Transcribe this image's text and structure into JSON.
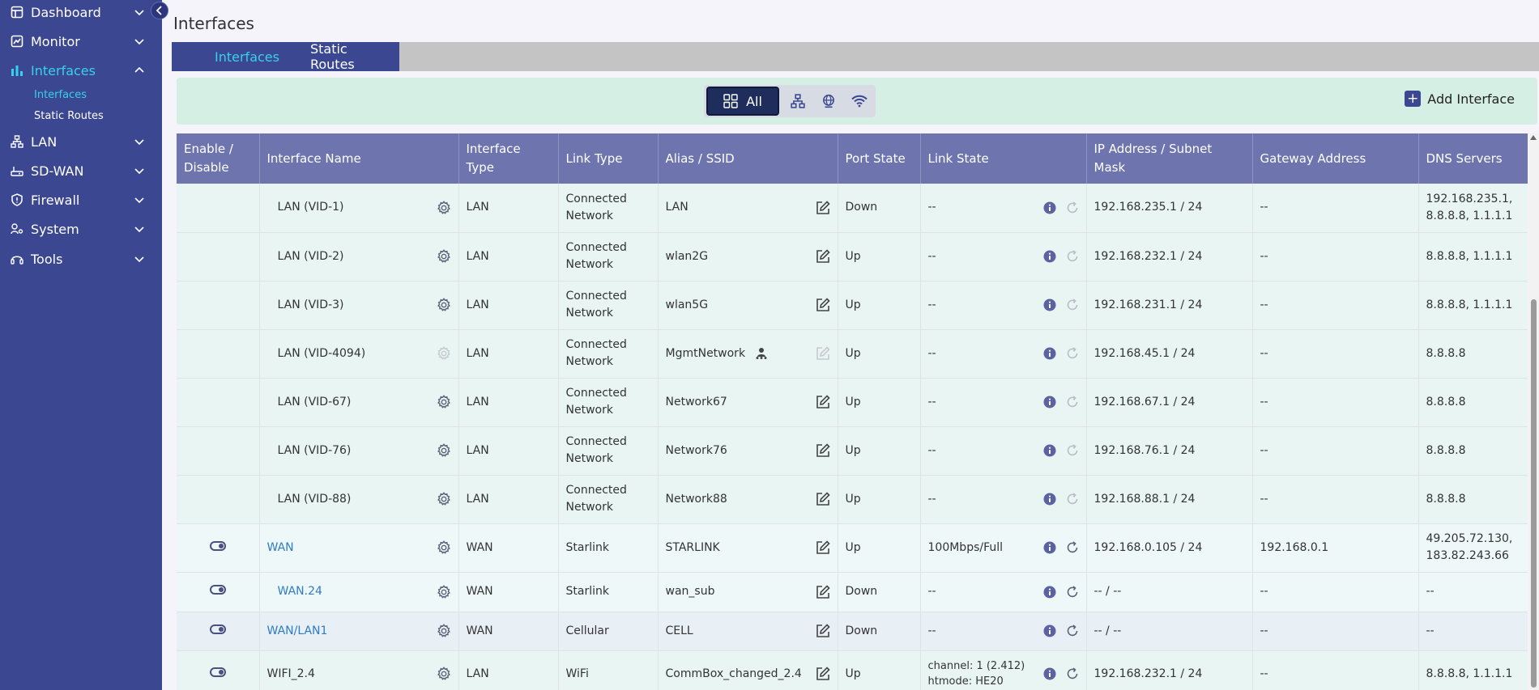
{
  "sidebar": {
    "items": [
      {
        "label": "Dashboard",
        "icon": "dashboard-icon"
      },
      {
        "label": "Monitor",
        "icon": "monitor-icon"
      },
      {
        "label": "Interfaces",
        "icon": "interfaces-icon"
      },
      {
        "label": "LAN",
        "icon": "lan-icon"
      },
      {
        "label": "SD-WAN",
        "icon": "sdwan-icon"
      },
      {
        "label": "Firewall",
        "icon": "shield-icon"
      },
      {
        "label": "System",
        "icon": "system-icon"
      },
      {
        "label": "Tools",
        "icon": "tools-icon"
      }
    ],
    "subitems": [
      {
        "label": "Interfaces"
      },
      {
        "label": "Static Routes"
      }
    ]
  },
  "page": {
    "title": "Interfaces"
  },
  "tabs": [
    {
      "label": "Interfaces"
    },
    {
      "label": "Static Routes"
    }
  ],
  "filter": {
    "all_label": "All",
    "add_label": "Add Interface"
  },
  "table": {
    "headers": [
      "Enable / Disable",
      "Interface Name",
      "Interface Type",
      "Link Type",
      "Alias / SSID",
      "Port State",
      "Link State",
      "IP Address / Subnet Mask",
      "Gateway Address",
      "DNS Servers"
    ],
    "rows": [
      {
        "name": "LAN (VID-1)",
        "type": "LAN",
        "link_type": "Connected Network",
        "alias": "LAN",
        "port_state": "Down",
        "link_state": "--",
        "ip": "192.168.235.1 / 24",
        "gateway": "--",
        "dns": "192.168.235.1, 8.8.8.8, 1.1.1.1"
      },
      {
        "name": "LAN (VID-2)",
        "type": "LAN",
        "link_type": "Connected Network",
        "alias": "wlan2G",
        "port_state": "Up",
        "link_state": "--",
        "ip": "192.168.232.1 / 24",
        "gateway": "--",
        "dns": "8.8.8.8, 1.1.1.1"
      },
      {
        "name": "LAN (VID-3)",
        "type": "LAN",
        "link_type": "Connected Network",
        "alias": "wlan5G",
        "port_state": "Up",
        "link_state": "--",
        "ip": "192.168.231.1 / 24",
        "gateway": "--",
        "dns": "8.8.8.8, 1.1.1.1"
      },
      {
        "name": "LAN (VID-4094)",
        "type": "LAN",
        "link_type": "Connected Network",
        "alias": "MgmtNetwork",
        "port_state": "Up",
        "link_state": "--",
        "ip": "192.168.45.1 / 24",
        "gateway": "--",
        "dns": "8.8.8.8"
      },
      {
        "name": "LAN (VID-67)",
        "type": "LAN",
        "link_type": "Connected Network",
        "alias": "Network67",
        "port_state": "Up",
        "link_state": "--",
        "ip": "192.168.67.1 / 24",
        "gateway": "--",
        "dns": "8.8.8.8"
      },
      {
        "name": "LAN (VID-76)",
        "type": "LAN",
        "link_type": "Connected Network",
        "alias": "Network76",
        "port_state": "Up",
        "link_state": "--",
        "ip": "192.168.76.1 / 24",
        "gateway": "--",
        "dns": "8.8.8.8"
      },
      {
        "name": "LAN (VID-88)",
        "type": "LAN",
        "link_type": "Connected Network",
        "alias": "Network88",
        "port_state": "Up",
        "link_state": "--",
        "ip": "192.168.88.1 / 24",
        "gateway": "--",
        "dns": "8.8.8.8"
      },
      {
        "name": "WAN",
        "type": "WAN",
        "link_type": "Starlink",
        "alias": "STARLINK",
        "port_state": "Up",
        "link_state": "100Mbps/Full",
        "ip": "192.168.0.105 / 24",
        "gateway": "192.168.0.1",
        "dns": "49.205.72.130, 183.82.243.66"
      },
      {
        "name": "WAN.24",
        "type": "WAN",
        "link_type": "Starlink",
        "alias": "wan_sub",
        "port_state": "Down",
        "link_state": "--",
        "ip": "-- / --",
        "gateway": "--",
        "dns": "--"
      },
      {
        "name": "WAN/LAN1",
        "type": "WAN",
        "link_type": "Cellular",
        "alias": "CELL",
        "port_state": "Down",
        "link_state": "--",
        "ip": "-- / --",
        "gateway": "--",
        "dns": "--"
      },
      {
        "name": "WIFI_2.4",
        "type": "LAN",
        "link_type": "WiFi",
        "alias": "CommBox_changed_2.4",
        "port_state": "Up",
        "link_state_line1": "channel: 1 (2.412)",
        "link_state_line2": "htmode: HE20",
        "ip": "192.168.232.1 / 24",
        "gateway": "--",
        "dns": "8.8.8.8, 1.1.1.1"
      }
    ]
  },
  "colors": {
    "sidebar_bg": "#3b4790",
    "accent_cyan": "#37d1f0",
    "header_bg": "#6e75ae",
    "link_blue": "#2e7bc7"
  }
}
